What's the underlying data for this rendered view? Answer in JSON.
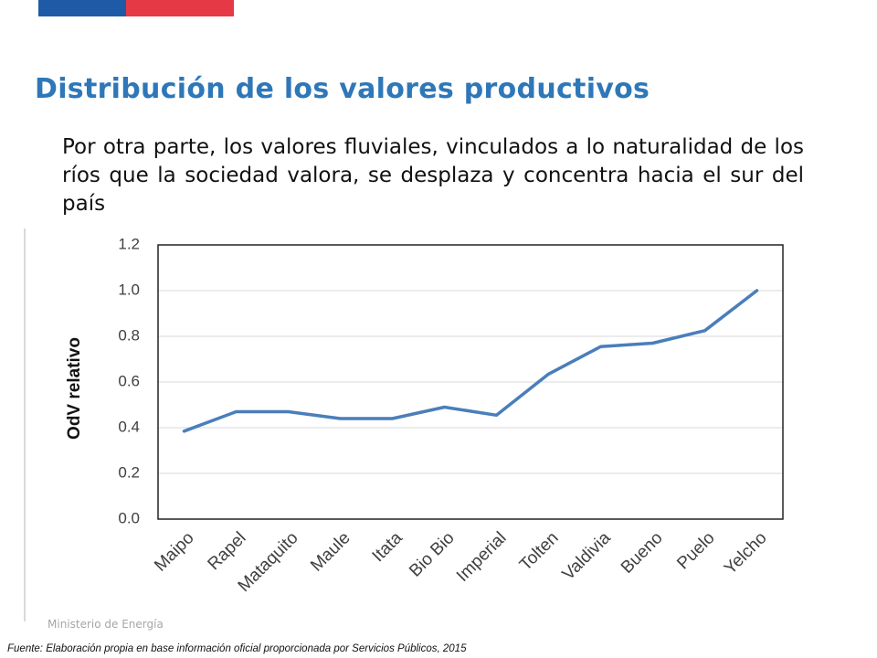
{
  "header": {
    "flag_colors": [
      "#1f5aa6",
      "#e63946"
    ]
  },
  "title": "Distribución de los valores productivos",
  "body_text": "Por otra parte, los valores fluviales, vinculados a lo naturalidad de los ríos que la sociedad valora, se desplaza y concentra hacia el sur del país",
  "footer": {
    "ministerio": "Ministerio de Energía",
    "source": "Fuente: Elaboración propia en base información oficial proporcionada por Servicios Públicos, 2015"
  },
  "chart_data": {
    "type": "line",
    "title": "",
    "xlabel": "",
    "ylabel": "OdV relativo",
    "categories": [
      "Maipo",
      "Rapel",
      "Mataquito",
      "Maule",
      "Itata",
      "Bio Bio",
      "Imperial",
      "Tolten",
      "Valdivia",
      "Bueno",
      "Puelo",
      "Yelcho"
    ],
    "series": [
      {
        "values": [
          0.385,
          0.47,
          0.47,
          0.44,
          0.44,
          0.49,
          0.455,
          0.635,
          0.755,
          0.77,
          0.825,
          1.0
        ],
        "color": "#4a7ebb"
      }
    ],
    "ylim": [
      0,
      1.2
    ],
    "yticks": [
      "0.0",
      "0.2",
      "0.4",
      "0.6",
      "0.8",
      "1.0",
      "1.2"
    ],
    "grid": true,
    "legend": "none"
  }
}
